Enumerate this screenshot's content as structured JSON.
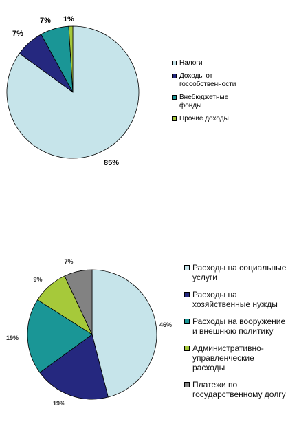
{
  "chart_data": [
    {
      "type": "pie",
      "labels": [
        "Налоги",
        "Доходы от госсобственности",
        "Внебюджетные фонды",
        "Прочие доходы"
      ],
      "legend": [
        "Налоги",
        "Доходы от\nгоссобственности",
        "Внебюджетные\nфонды",
        "Прочие доходы"
      ],
      "values": [
        85,
        7,
        7,
        1
      ],
      "data_labels": [
        "85%",
        "7%",
        "7%",
        "1%"
      ],
      "colors": [
        "#c6e4ea",
        "#25287f",
        "#1a9696",
        "#a6c93a"
      ],
      "legend_position": "right"
    },
    {
      "type": "pie",
      "labels": [
        "Расходы на социальные услуги",
        "Расходы на хозяйственные нужды",
        "Расходы на вооружение и внешнюю политику",
        "Административно-управленческие расходы",
        "Платежи по государственному долгу"
      ],
      "legend": [
        "Расходы на социальные\nуслуги",
        "Расходы на\nхозяйственные нужды",
        "Расходы на вооружение\nи внешнюю политику",
        "Административно-\nуправленческие\nрасходы",
        "Платежи по\nгосударственному долгу"
      ],
      "values": [
        46,
        19,
        19,
        9,
        7
      ],
      "data_labels": [
        "46%",
        "19%",
        "19%",
        "9%",
        "7%"
      ],
      "colors": [
        "#c6e4ea",
        "#25287f",
        "#1a9696",
        "#a6c93a",
        "#828282"
      ],
      "legend_position": "right"
    }
  ]
}
